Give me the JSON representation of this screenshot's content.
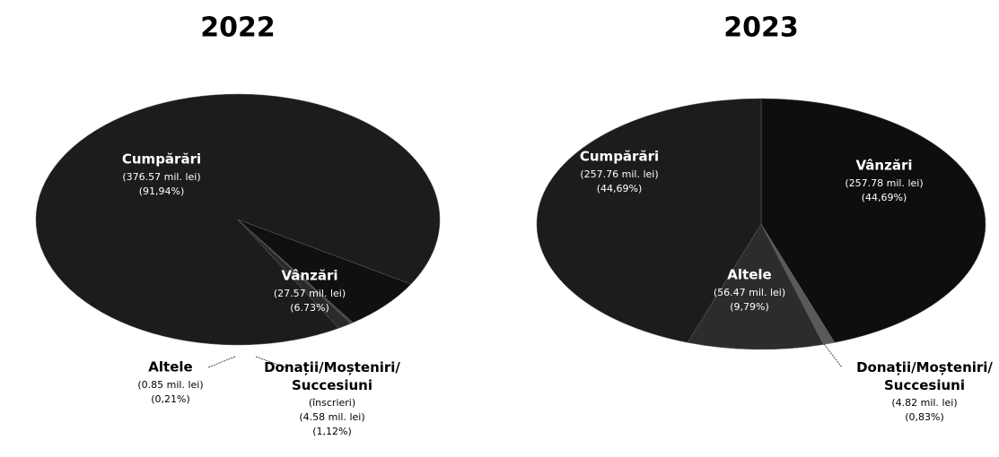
{
  "chart_data": [
    {
      "type": "pie",
      "title": "2022",
      "categories": [
        "Cumpărări",
        "Vânzări",
        "Altele",
        "Donații/Moșteniri/Succesiuni"
      ],
      "values": [
        376.57,
        27.57,
        0.85,
        4.58
      ],
      "value_labels": [
        "(376.57 mil. lei)",
        "(27.57 mil. lei)",
        "(0.85 mil. lei)",
        "(4.58 mil. lei)"
      ],
      "percents": [
        91.94,
        6.73,
        0.21,
        1.12
      ],
      "percent_labels": [
        "(91,94%)",
        "(6.73%)",
        "(0,21%)",
        "(1,12%)"
      ],
      "notes": [
        null,
        null,
        null,
        "(înscrieri)"
      ],
      "colors": [
        "#1c1c1c",
        "#101010",
        "#444444",
        "#2a2a2a"
      ]
    },
    {
      "type": "pie",
      "title": "2023",
      "categories": [
        "Vânzări",
        "Donații/Moșteniri/Succesiuni",
        "Altele",
        "Cumpărări"
      ],
      "values": [
        257.78,
        4.82,
        56.47,
        257.76
      ],
      "value_labels": [
        "(257.78 mil. lei)",
        "(4.82 mil. lei)",
        "(56.47 mil. lei)",
        "(257.76 mil. lei)"
      ],
      "percents": [
        44.69,
        0.83,
        9.79,
        44.69
      ],
      "percent_labels": [
        "(44,69%)",
        "(0,83%)",
        "(9,79%)",
        "(44,69%)"
      ],
      "notes": [
        null,
        null,
        null,
        null
      ],
      "colors": [
        "#0e0e0e",
        "#5a5a5a",
        "#2c2c2c",
        "#1c1c1c"
      ]
    }
  ]
}
